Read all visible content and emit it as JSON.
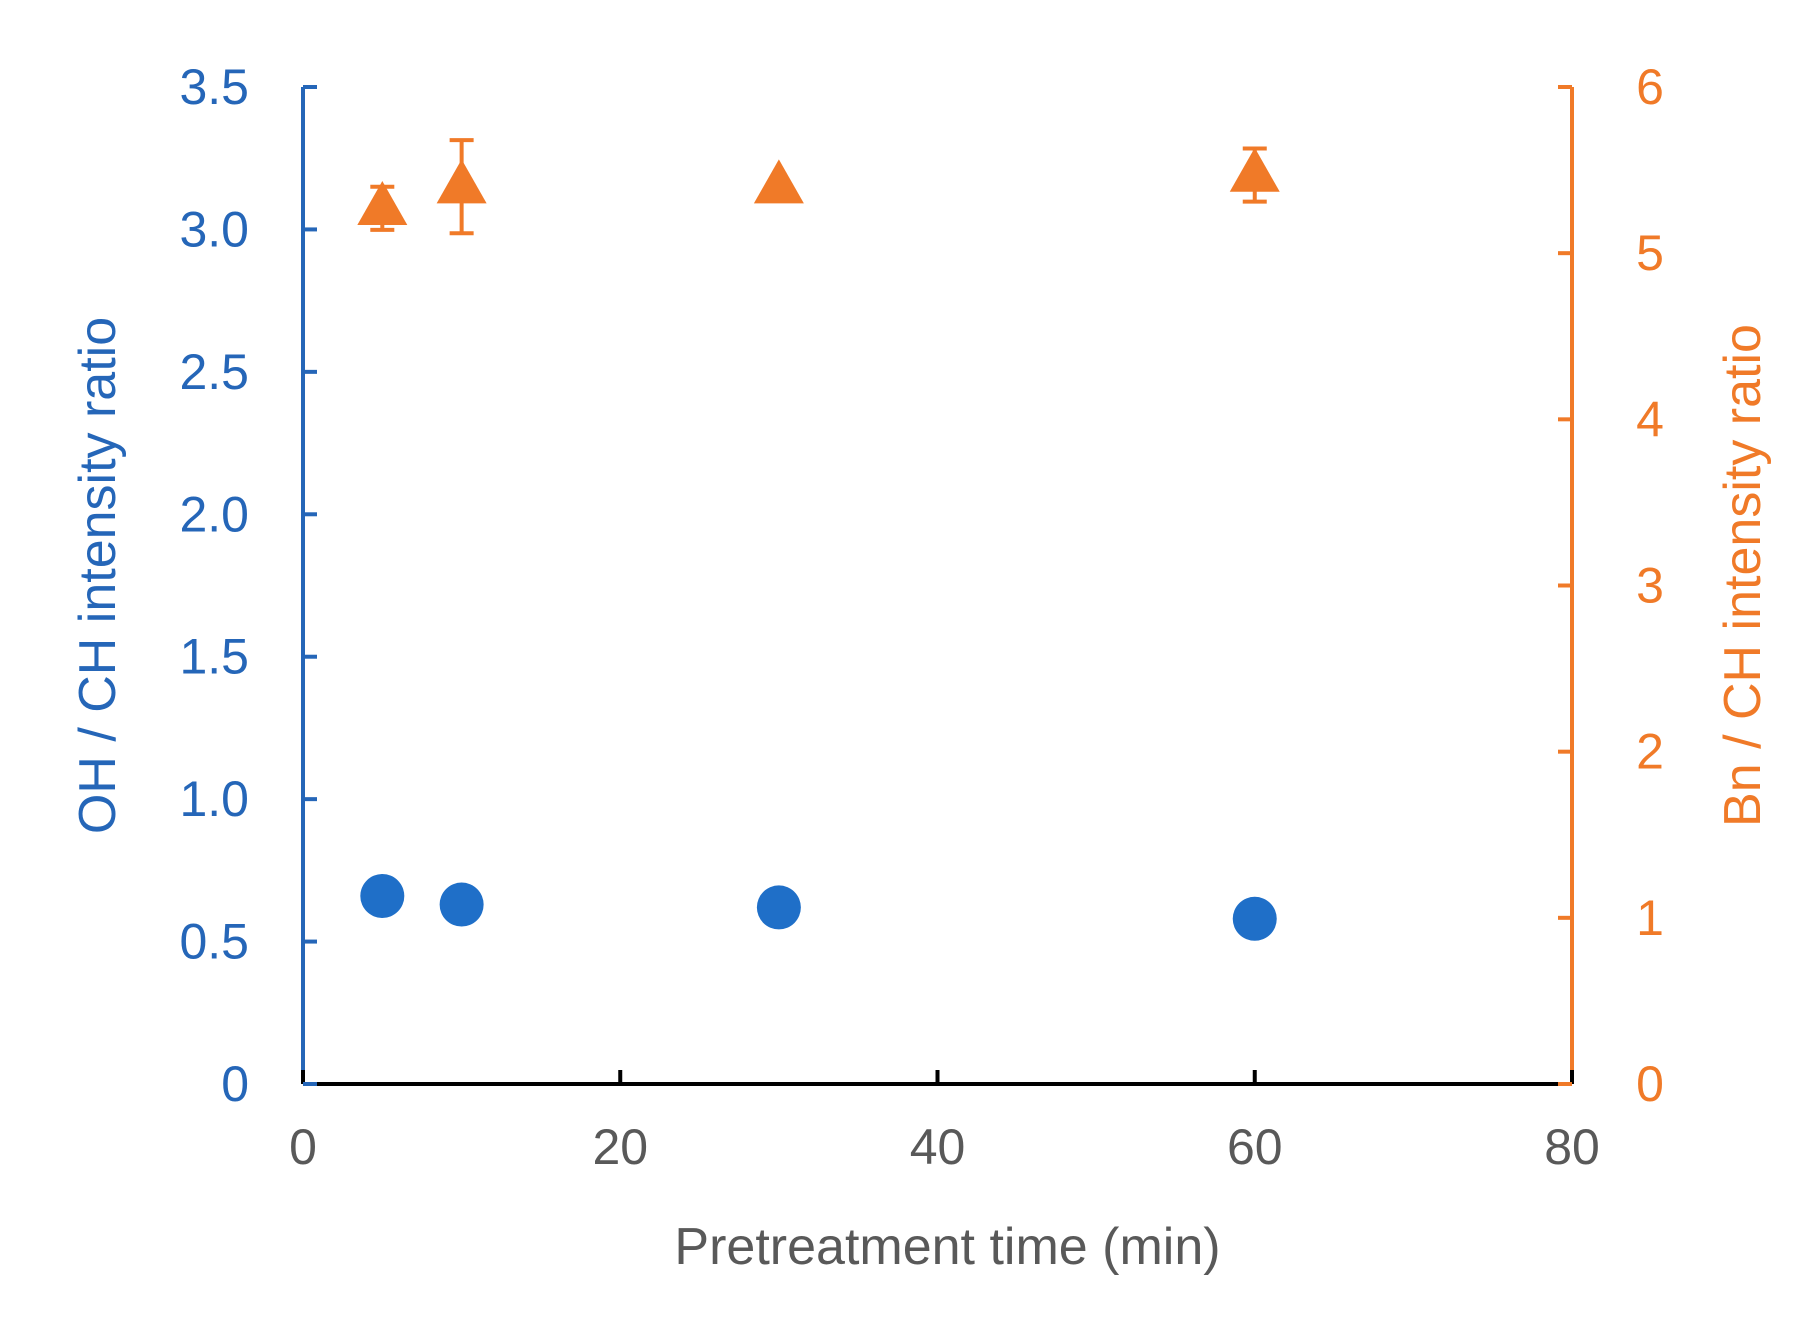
{
  "chart_data": {
    "type": "scatter",
    "title": "",
    "xlabel": "Pretreatment time (min)",
    "ylabel_left": "OH / CH intensity ratio",
    "ylabel_right": "Bn / CH intensity ratio",
    "xlim": [
      0,
      80
    ],
    "ylim_left": [
      0,
      3.5
    ],
    "ylim_right": [
      0,
      6
    ],
    "x_ticks": [
      "0",
      "20",
      "40",
      "60",
      "80"
    ],
    "y_left_ticks": [
      "0",
      "0.5",
      "1.0",
      "1.5",
      "2.0",
      "2.5",
      "3.0",
      "3.5"
    ],
    "y_right_ticks": [
      "0",
      "1",
      "2",
      "3",
      "4",
      "5",
      "6"
    ],
    "grid": false,
    "series": [
      {
        "axis": "left",
        "marker": "circle",
        "color": "#1f6fc8",
        "x": [
          5,
          10,
          30,
          60
        ],
        "y": [
          0.66,
          0.63,
          0.62,
          0.58
        ],
        "error": [
          0.02,
          0.05,
          0.02,
          0.02
        ]
      },
      {
        "axis": "right",
        "marker": "triangle",
        "color": "#f07a28",
        "x": [
          5,
          10,
          30,
          60
        ],
        "y": [
          5.27,
          5.4,
          5.4,
          5.47
        ],
        "error": [
          0.13,
          0.28,
          0.02,
          0.16
        ]
      }
    ]
  },
  "colors": {
    "left_axis": "#2566b8",
    "right_axis": "#f07a28",
    "x_axis": "#000000",
    "tick_text": "#595959"
  }
}
